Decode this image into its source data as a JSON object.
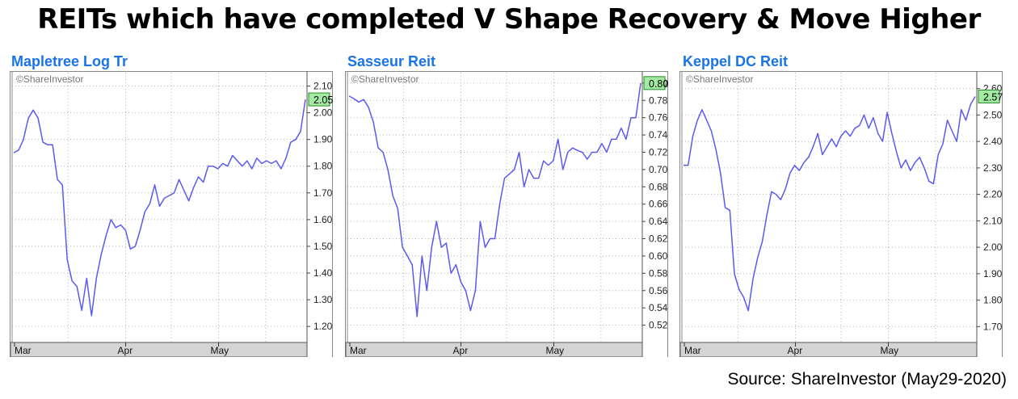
{
  "title": "REITs which have completed V Shape Recovery & Move Higher",
  "source": "Source: ShareInvestor (May29-2020)",
  "colors": {
    "line": "#5a5af0",
    "last_box": "#a3eba3",
    "grid": "#b0b0b0",
    "axis_band": "#d4d4d4"
  },
  "chart_data": [
    {
      "type": "line",
      "title": "Mapletree Log Tr",
      "watermark": "©ShareInvestor",
      "x_labels": [
        "Mar",
        "Apr",
        "May"
      ],
      "y_ticks": [
        "1.20",
        "1.30",
        "1.40",
        "1.50",
        "1.60",
        "1.70",
        "1.80",
        "1.90",
        "2.00",
        "2.10"
      ],
      "ylim": [
        1.14,
        2.15
      ],
      "last_label": "2.05",
      "last_value": 2.05,
      "values": [
        1.85,
        1.86,
        1.9,
        1.98,
        2.01,
        1.98,
        1.89,
        1.88,
        1.88,
        1.75,
        1.73,
        1.45,
        1.37,
        1.35,
        1.26,
        1.38,
        1.24,
        1.38,
        1.47,
        1.54,
        1.6,
        1.57,
        1.58,
        1.56,
        1.49,
        1.5,
        1.56,
        1.63,
        1.66,
        1.73,
        1.65,
        1.68,
        1.69,
        1.7,
        1.75,
        1.71,
        1.67,
        1.72,
        1.76,
        1.74,
        1.8,
        1.8,
        1.79,
        1.81,
        1.8,
        1.84,
        1.82,
        1.8,
        1.82,
        1.79,
        1.83,
        1.81,
        1.82,
        1.81,
        1.82,
        1.79,
        1.83,
        1.89,
        1.9,
        1.93,
        2.05
      ]
    },
    {
      "type": "line",
      "title": "Sasseur Reit",
      "watermark": "©ShareInvestor",
      "x_labels": [
        "Mar",
        "Apr",
        "May"
      ],
      "y_ticks": [
        "0.520",
        "0.540",
        "0.560",
        "0.580",
        "0.600",
        "0.620",
        "0.640",
        "0.660",
        "0.680",
        "0.700",
        "0.720",
        "0.740",
        "0.760",
        "0.780",
        "0.800"
      ],
      "ylim": [
        0.5,
        0.812
      ],
      "last_label": "0.800",
      "last_value": 0.8,
      "values": [
        0.785,
        0.782,
        0.778,
        0.781,
        0.772,
        0.755,
        0.725,
        0.72,
        0.7,
        0.67,
        0.655,
        0.61,
        0.6,
        0.59,
        0.53,
        0.6,
        0.56,
        0.61,
        0.64,
        0.61,
        0.615,
        0.58,
        0.59,
        0.57,
        0.56,
        0.537,
        0.56,
        0.64,
        0.61,
        0.62,
        0.62,
        0.66,
        0.69,
        0.695,
        0.7,
        0.72,
        0.68,
        0.7,
        0.69,
        0.69,
        0.71,
        0.705,
        0.71,
        0.735,
        0.7,
        0.72,
        0.725,
        0.722,
        0.72,
        0.712,
        0.72,
        0.72,
        0.73,
        0.72,
        0.735,
        0.735,
        0.748,
        0.735,
        0.76,
        0.76,
        0.8
      ]
    },
    {
      "type": "line",
      "title": "Keppel DC Reit",
      "watermark": "©ShareInvestor",
      "x_labels": [
        "Mar",
        "Apr",
        "May"
      ],
      "y_ticks": [
        "1.70",
        "1.80",
        "1.90",
        "2.00",
        "2.10",
        "2.20",
        "2.30",
        "2.40",
        "2.50",
        "2.60"
      ],
      "ylim": [
        1.64,
        2.66
      ],
      "last_label": "2.57",
      "last_value": 2.57,
      "values": [
        2.31,
        2.31,
        2.42,
        2.48,
        2.52,
        2.48,
        2.44,
        2.37,
        2.28,
        2.15,
        2.14,
        1.9,
        1.84,
        1.81,
        1.76,
        1.88,
        1.96,
        2.02,
        2.12,
        2.21,
        2.2,
        2.18,
        2.22,
        2.28,
        2.31,
        2.29,
        2.32,
        2.34,
        2.38,
        2.43,
        2.35,
        2.38,
        2.41,
        2.38,
        2.42,
        2.44,
        2.42,
        2.45,
        2.46,
        2.5,
        2.45,
        2.49,
        2.43,
        2.4,
        2.51,
        2.43,
        2.36,
        2.3,
        2.33,
        2.29,
        2.32,
        2.34,
        2.3,
        2.25,
        2.24,
        2.35,
        2.39,
        2.48,
        2.44,
        2.4,
        2.52,
        2.48,
        2.54,
        2.57
      ]
    }
  ]
}
